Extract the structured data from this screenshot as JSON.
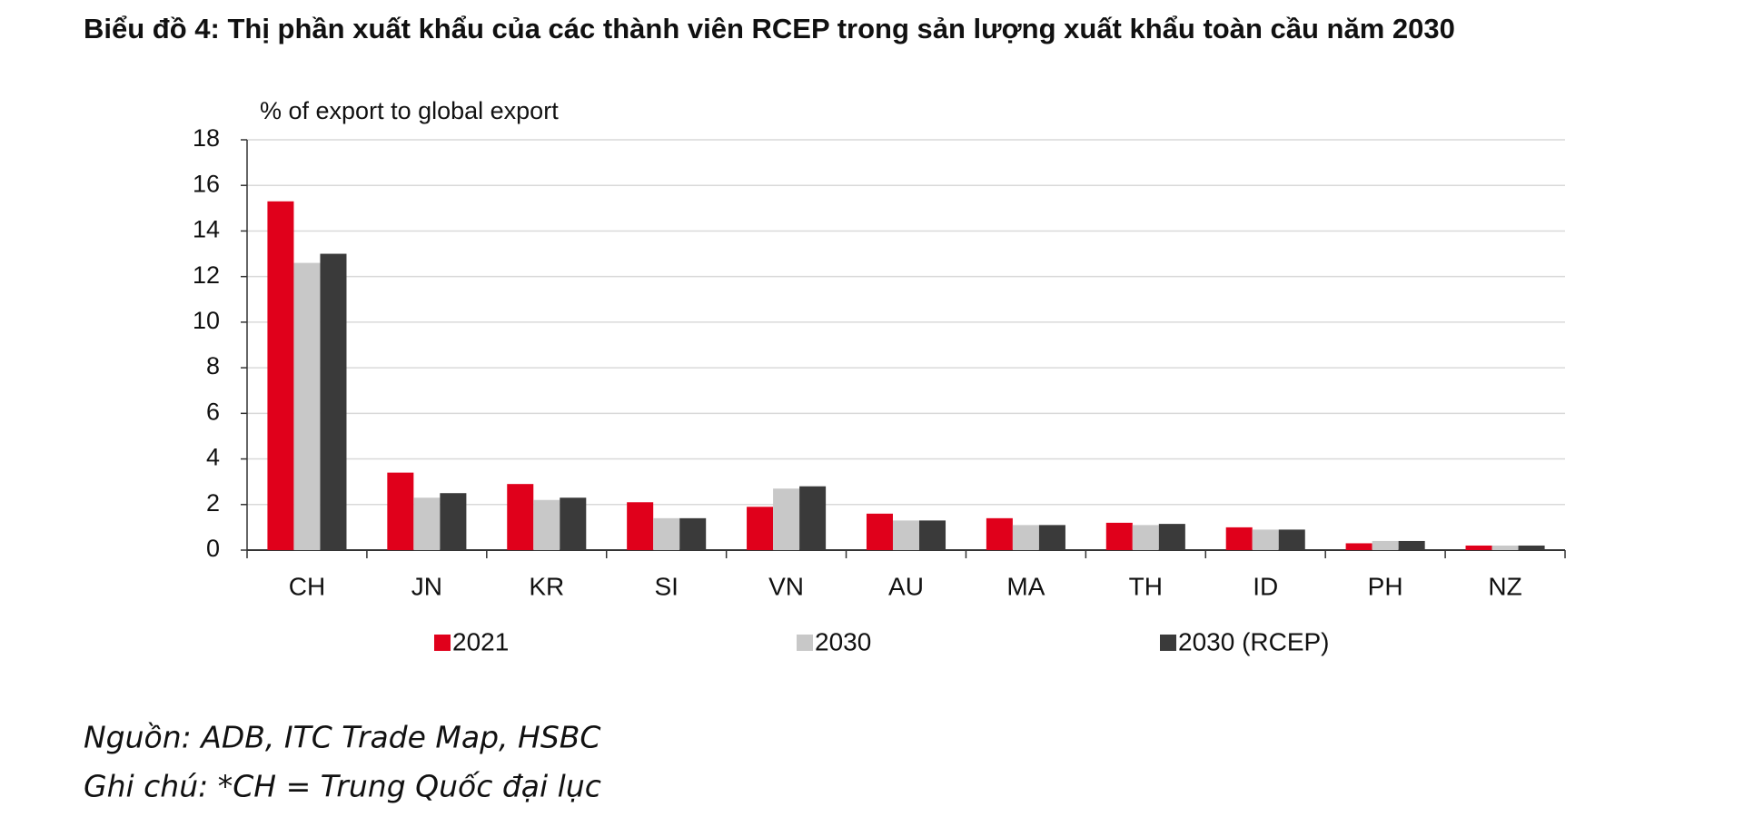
{
  "chart_data": {
    "type": "bar",
    "title": "Biểu đồ 4: Thị phần xuất khẩu của các thành viên RCEP trong sản lượng xuất khẩu toàn cầu năm 2030",
    "y_label": "% of export to global export",
    "categories": [
      "CH",
      "JN",
      "KR",
      "SI",
      "VN",
      "AU",
      "MA",
      "TH",
      "ID",
      "PH",
      "NZ"
    ],
    "series": [
      {
        "name": "2021",
        "color": "#e0001b",
        "values": [
          15.3,
          3.4,
          2.9,
          2.1,
          1.9,
          1.6,
          1.4,
          1.2,
          1.0,
          0.3,
          0.2
        ]
      },
      {
        "name": "2030",
        "color": "#c8c8c8",
        "values": [
          12.6,
          2.3,
          2.2,
          1.4,
          2.7,
          1.3,
          1.1,
          1.1,
          0.9,
          0.4,
          0.2
        ]
      },
      {
        "name": "2030 (RCEP)",
        "color": "#3a3a3a",
        "values": [
          13.0,
          2.5,
          2.3,
          1.4,
          2.8,
          1.3,
          1.1,
          1.15,
          0.9,
          0.4,
          0.2
        ]
      }
    ],
    "ylim": [
      0,
      18
    ],
    "yticks": [
      0,
      2,
      4,
      6,
      8,
      10,
      12,
      14,
      16,
      18
    ],
    "grid": true,
    "source": "Nguồn: ADB, ITC Trade Map, HSBC",
    "note": "Ghi chú: *CH = Trung Quốc đại lục"
  }
}
